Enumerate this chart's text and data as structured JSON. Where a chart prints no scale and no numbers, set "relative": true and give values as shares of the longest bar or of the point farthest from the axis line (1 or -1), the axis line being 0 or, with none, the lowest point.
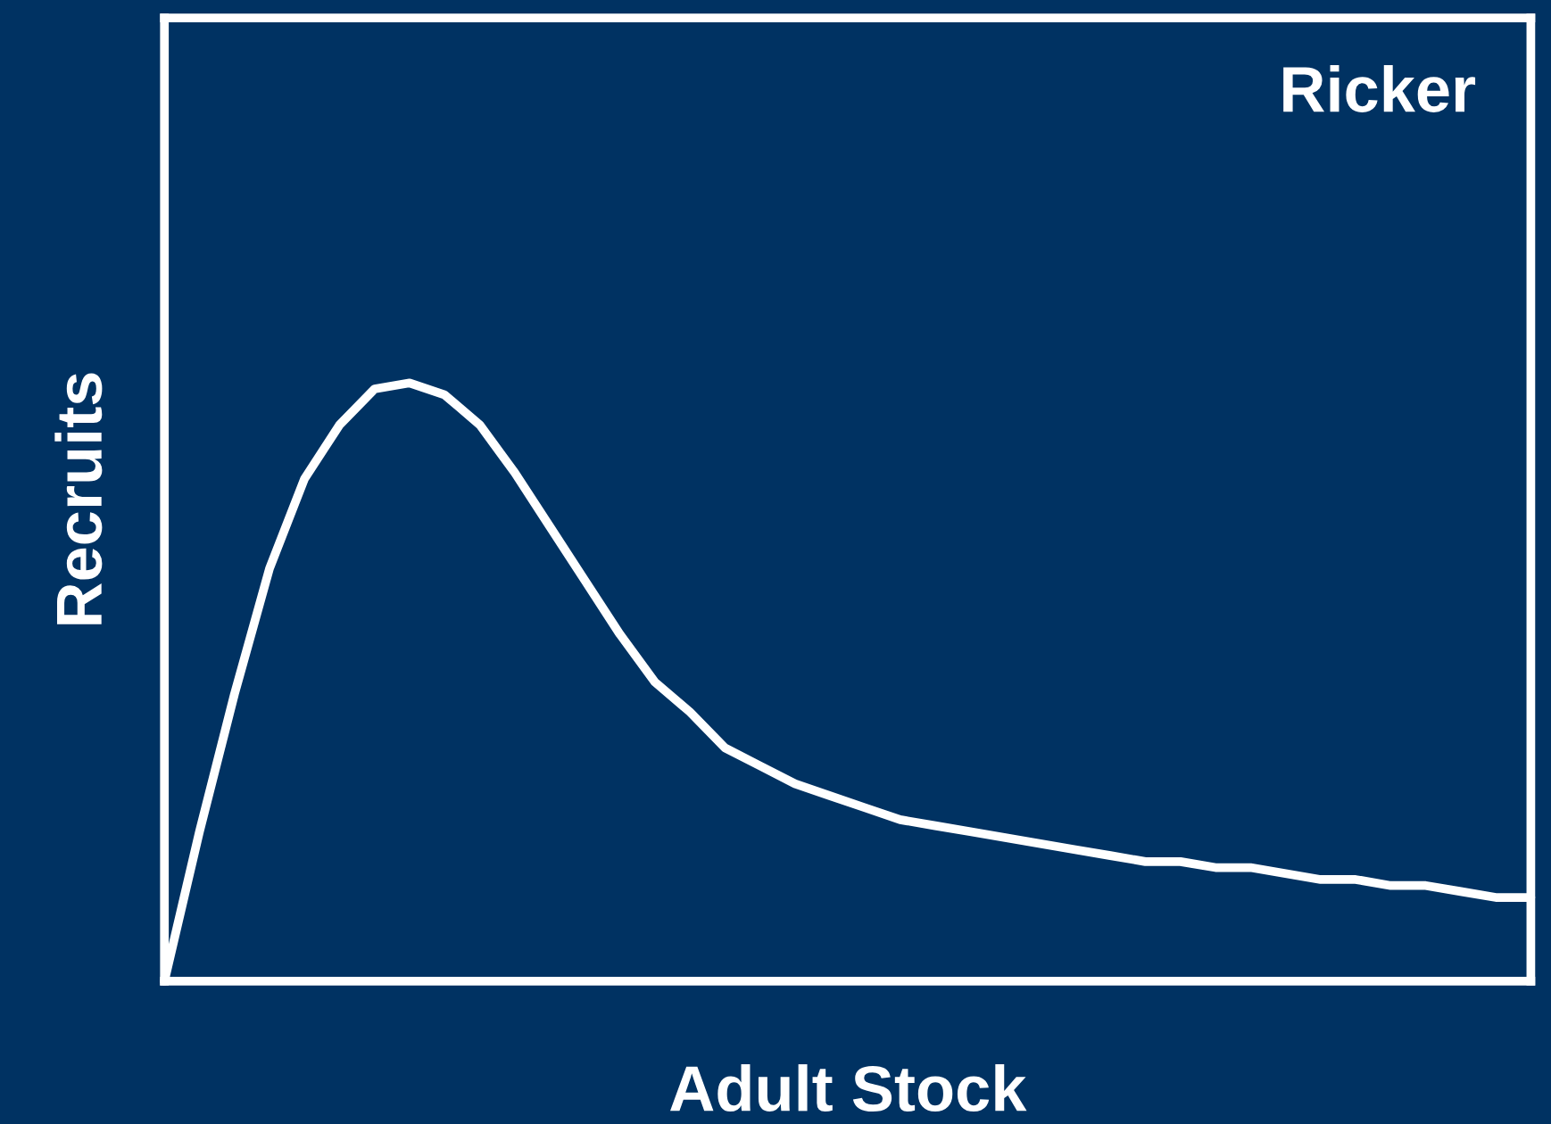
{
  "chart_data": {
    "type": "line",
    "relative": true,
    "xlabel": "Adult Stock",
    "ylabel": "Recruits",
    "annotations": [
      "Ricker"
    ],
    "categories": [
      null,
      null,
      null,
      null,
      null,
      null,
      null,
      null,
      null,
      null,
      null,
      null,
      null,
      null,
      null,
      null,
      null,
      null,
      null,
      null,
      null,
      null,
      null,
      null,
      null,
      null,
      null,
      null,
      null,
      null,
      null,
      null,
      null,
      null,
      null,
      null,
      null,
      null,
      null,
      null
    ],
    "series": [
      {
        "color": "#ffffff",
        "values": [
          0,
          0.25,
          0.48,
          0.69,
          0.84,
          0.93,
          0.99,
          1,
          0.98,
          0.93,
          0.85,
          0.76,
          0.67,
          0.58,
          0.5,
          0.45,
          0.39,
          0.36,
          0.33,
          0.31,
          0.29,
          0.27,
          0.26,
          0.25,
          0.24,
          0.23,
          0.22,
          0.21,
          0.2,
          0.2,
          0.19,
          0.19,
          0.18,
          0.17,
          0.17,
          0.16,
          0.16,
          0.15,
          0.14,
          0.14
        ]
      }
    ]
  }
}
